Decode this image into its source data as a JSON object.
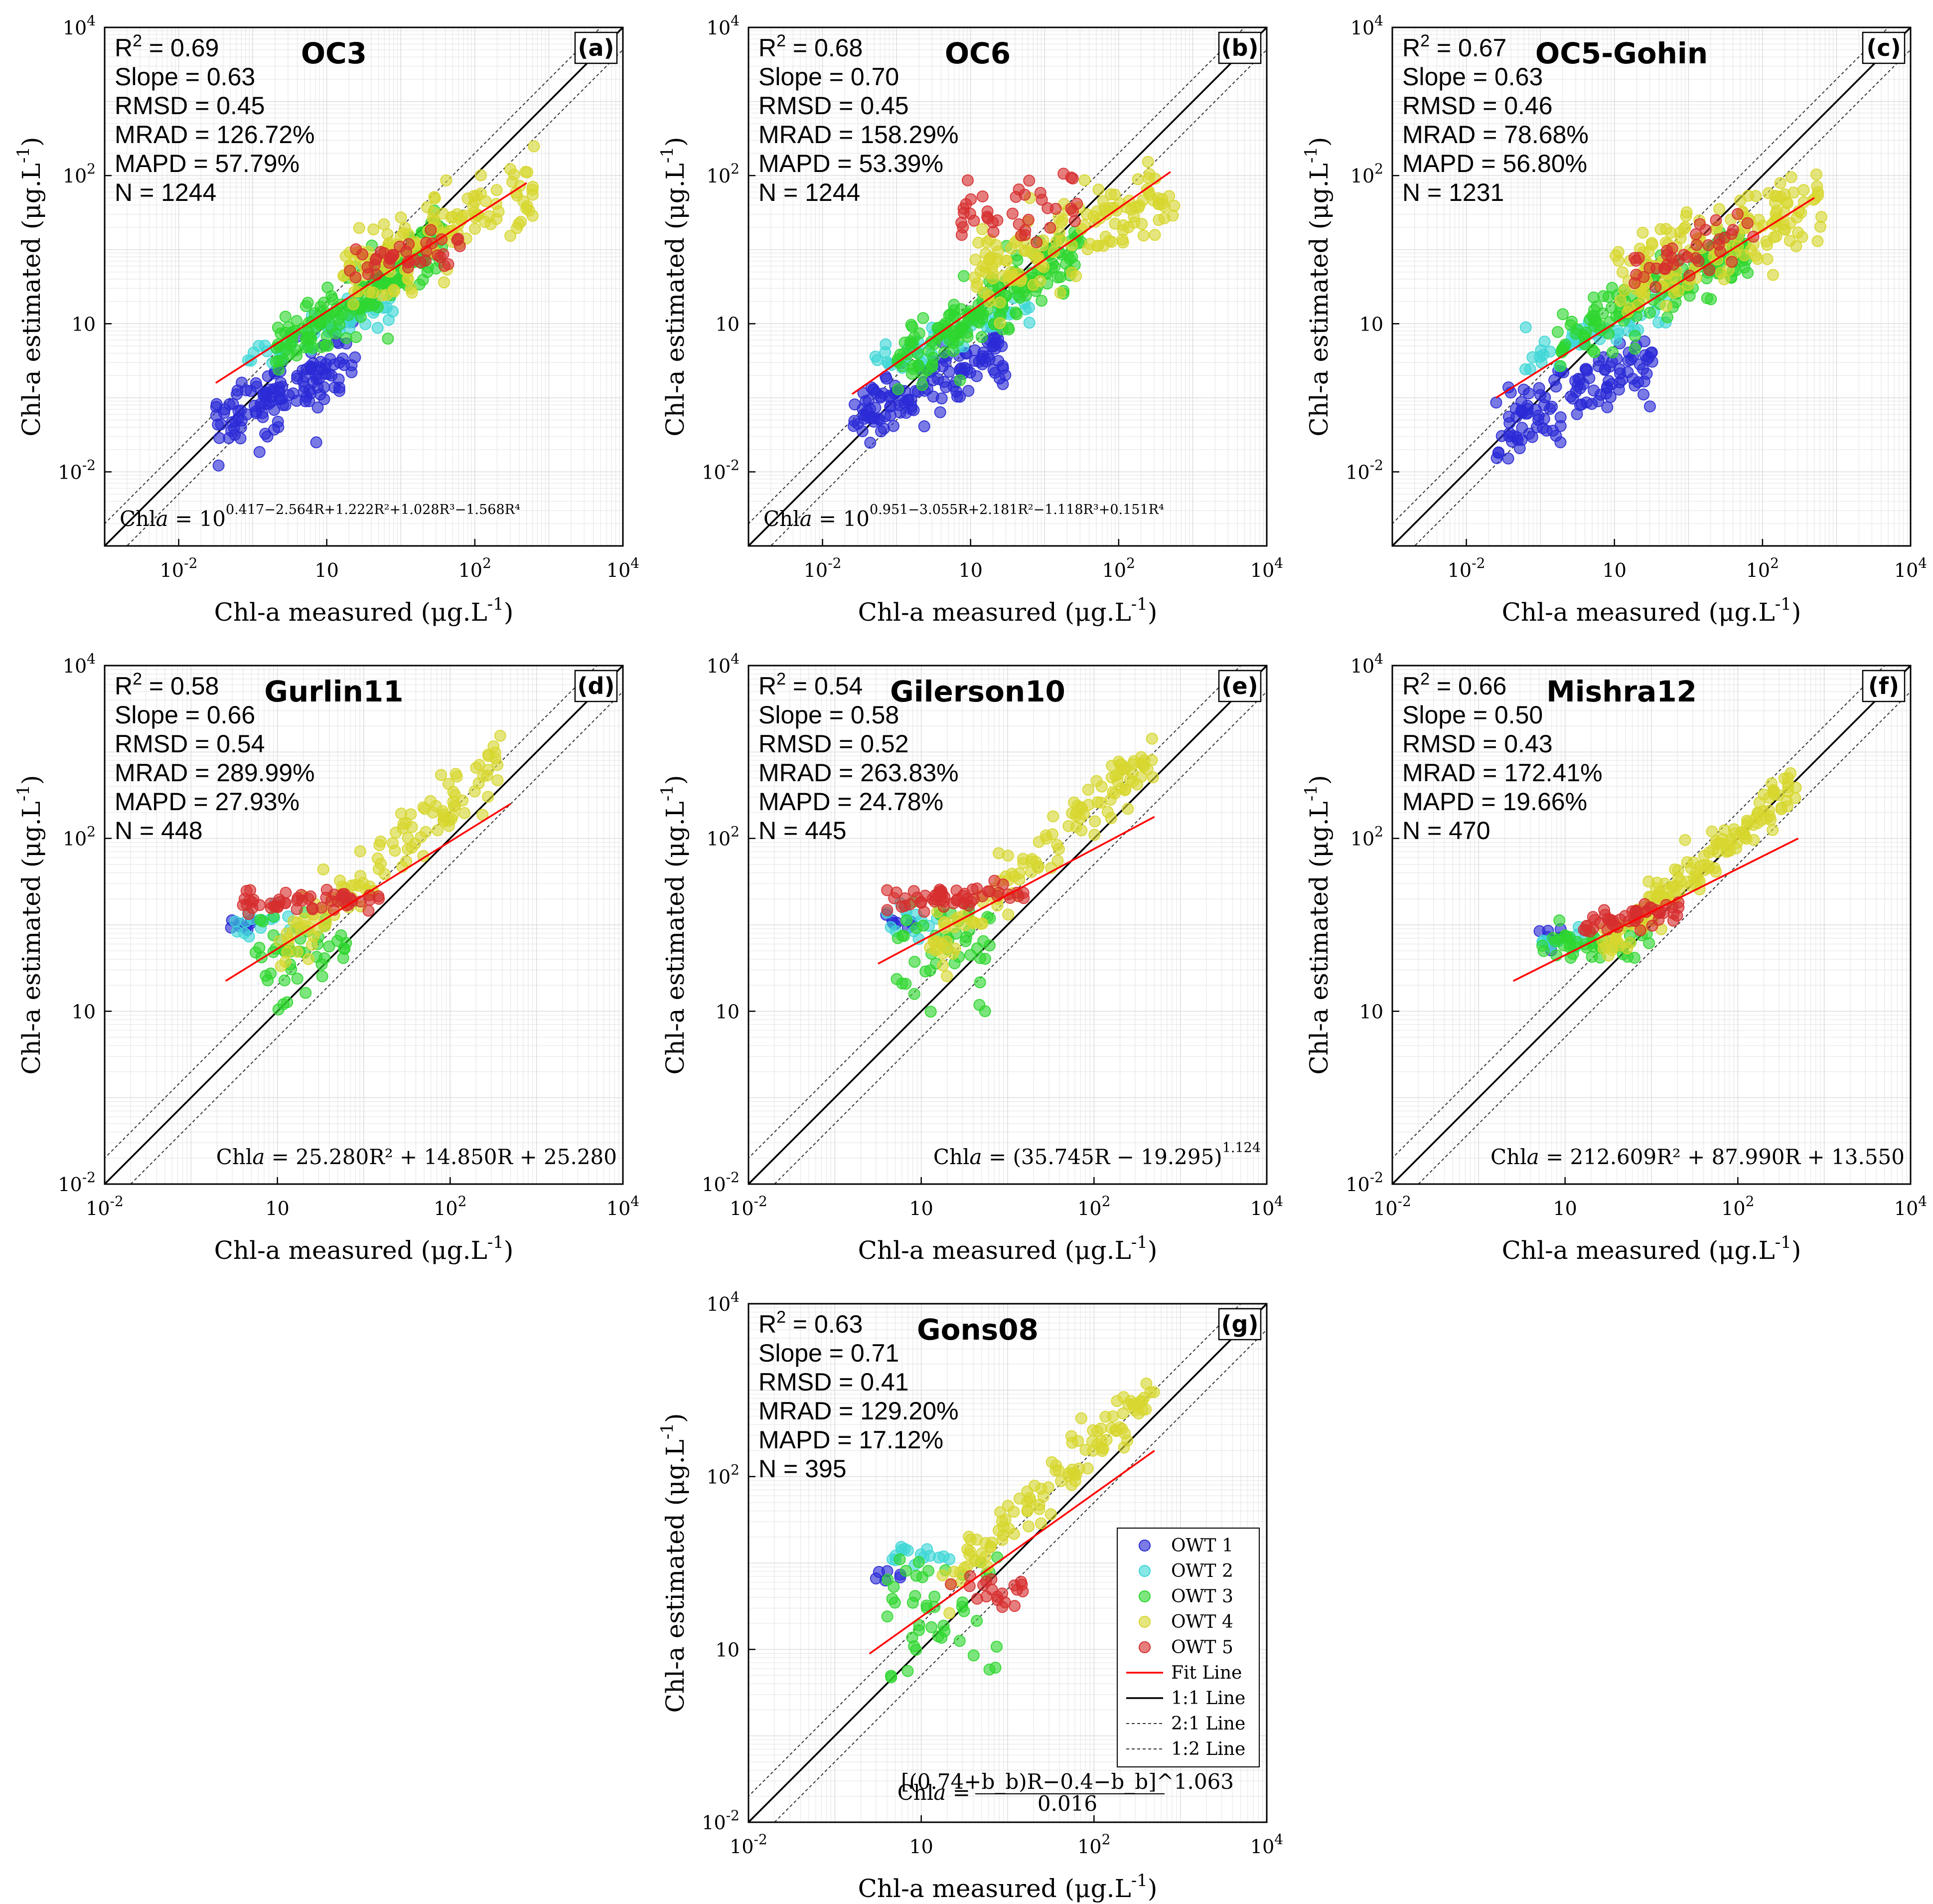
{
  "figure": {
    "axis_x_label": "Chl-a measured (μg.L",
    "axis_y_label": "Chl-a estimated (μg.L",
    "unit_sup": "-1",
    "unit_close": ")"
  },
  "colors": {
    "OWT 1": "#2a2ad6",
    "OWT 2": "#3ed6d6",
    "OWT 3": "#2ed62e",
    "OWT 4": "#d6d62e",
    "OWT 5": "#d62e2e",
    "fit": "#ff0000"
  },
  "legend": {
    "entries": [
      "OWT 1",
      "OWT 2",
      "OWT 3",
      "OWT 4",
      "OWT 5",
      "Fit Line",
      "1:1 Line",
      "2:1 Line",
      "1:2 Line"
    ]
  },
  "chart_data": [
    {
      "type": "scatter",
      "letter": "(a)",
      "title": "OC3",
      "xlim_log10": [
        -3,
        4
      ],
      "ylim_log10": [
        -3,
        4
      ],
      "stats": {
        "r2_value": "0.69",
        "slope": "Slope = 0.63",
        "rmsd": "RMSD = 0.45",
        "mrad": "MRAD = 126.72%",
        "mapd": "MAPD = 57.79%",
        "n": "N = 1244"
      },
      "formula": {
        "prefix": "Chl",
        "italic": "a",
        "mid": " = 10",
        "sup": "0.417−2.564R+1.222R²+1.028R³−1.568R⁴"
      },
      "fit": {
        "x_log10": [
          -1.5,
          2.7
        ],
        "y_log10": [
          -0.8,
          1.9
        ]
      },
      "clusters": [
        {
          "owt": "OWT 1",
          "n": 130,
          "xr": [
            -1.5,
            0.4
          ],
          "ya": 0.45,
          "yb": -0.65,
          "sd": 0.22
        },
        {
          "owt": "OWT 2",
          "n": 50,
          "xr": [
            -1.1,
            0.9
          ],
          "ya": 0.4,
          "yb": -0.05,
          "sd": 0.12
        },
        {
          "owt": "OWT 3",
          "n": 170,
          "xr": [
            -0.7,
            1.6
          ],
          "ya": 0.65,
          "yb": 0.1,
          "sd": 0.2
        },
        {
          "owt": "OWT 4",
          "n": 140,
          "xr": [
            0.2,
            2.8
          ],
          "ya": 0.45,
          "yb": 0.55,
          "sd": 0.28
        },
        {
          "owt": "OWT 5",
          "n": 40,
          "xr": [
            0.3,
            1.8
          ],
          "ya": 0.15,
          "yb": 0.75,
          "sd": 0.12
        }
      ]
    },
    {
      "type": "scatter",
      "letter": "(b)",
      "title": "OC6",
      "xlim_log10": [
        -3,
        4
      ],
      "ylim_log10": [
        -3,
        4
      ],
      "stats": {
        "r2_value": "0.68",
        "slope": "Slope = 0.70",
        "rmsd": "RMSD = 0.45",
        "mrad": "MRAD = 158.29%",
        "mapd": "MAPD = 53.39%",
        "n": "N = 1244"
      },
      "formula": {
        "prefix": "Chl",
        "italic": "a",
        "mid": " = 10",
        "sup": "0.951−3.055R+2.181R²−1.118R³+0.151R⁴"
      },
      "fit": {
        "x_log10": [
          -1.6,
          2.7
        ],
        "y_log10": [
          -0.95,
          2.05
        ]
      },
      "clusters": [
        {
          "owt": "OWT 1",
          "n": 130,
          "xr": [
            -1.6,
            0.5
          ],
          "ya": 0.45,
          "yb": -0.55,
          "sd": 0.22
        },
        {
          "owt": "OWT 2",
          "n": 50,
          "xr": [
            -1.3,
            0.8
          ],
          "ya": 0.4,
          "yb": -0.05,
          "sd": 0.12
        },
        {
          "owt": "OWT 3",
          "n": 170,
          "xr": [
            -1.0,
            1.5
          ],
          "ya": 0.65,
          "yb": 0.1,
          "sd": 0.2
        },
        {
          "owt": "OWT 4",
          "n": 140,
          "xr": [
            0.0,
            2.8
          ],
          "ya": 0.4,
          "yb": 0.6,
          "sd": 0.25
        },
        {
          "owt": "OWT 5",
          "n": 40,
          "xr": [
            -0.2,
            1.5
          ],
          "ya": 0.1,
          "yb": 1.45,
          "sd": 0.2
        }
      ]
    },
    {
      "type": "scatter",
      "letter": "(c)",
      "title": "OC5-Gohin",
      "xlim_log10": [
        -3,
        4
      ],
      "ylim_log10": [
        -3,
        4
      ],
      "stats": {
        "r2_value": "0.67",
        "slope": "Slope = 0.63",
        "rmsd": "RMSD = 0.46",
        "mrad": "MRAD = 78.68%",
        "mapd": "MAPD = 56.80%",
        "n": "N = 1231"
      },
      "formula": null,
      "fit": {
        "x_log10": [
          -1.6,
          2.7
        ],
        "y_log10": [
          -1.0,
          1.7
        ]
      },
      "clusters": [
        {
          "owt": "OWT 1",
          "n": 120,
          "xr": [
            -1.6,
            0.6
          ],
          "ya": 0.5,
          "yb": -0.7,
          "sd": 0.25
        },
        {
          "owt": "OWT 2",
          "n": 50,
          "xr": [
            -1.3,
            0.8
          ],
          "ya": 0.4,
          "yb": -0.05,
          "sd": 0.14
        },
        {
          "owt": "OWT 3",
          "n": 150,
          "xr": [
            -0.8,
            1.8
          ],
          "ya": 0.5,
          "yb": 0.15,
          "sd": 0.2
        },
        {
          "owt": "OWT 4",
          "n": 160,
          "xr": [
            0.0,
            2.8
          ],
          "ya": 0.4,
          "yb": 0.55,
          "sd": 0.28
        },
        {
          "owt": "OWT 5",
          "n": 40,
          "xr": [
            0.2,
            1.9
          ],
          "ya": 0.35,
          "yb": 0.6,
          "sd": 0.15
        }
      ]
    },
    {
      "type": "scatter",
      "letter": "(d)",
      "title": "Gurlin11",
      "xlim_log10": [
        -2,
        4
      ],
      "ylim_log10": [
        -2,
        4
      ],
      "stats": {
        "r2_value": "0.58",
        "slope": "Slope = 0.66",
        "rmsd": "RMSD = 0.54",
        "mrad": "MRAD = 289.99%",
        "mapd": "MAPD = 27.93%",
        "n": "N = 448"
      },
      "formula": {
        "prefix": "Chl",
        "italic": "a",
        "mid": " = 25.280R² + 14.850R + 25.280",
        "sup": ""
      },
      "fit": {
        "x_log10": [
          -0.6,
          2.7
        ],
        "y_log10": [
          0.35,
          2.4
        ]
      },
      "clusters": [
        {
          "owt": "OWT 1",
          "n": 8,
          "xr": [
            -0.6,
            -0.2
          ],
          "ya": 0.0,
          "yb": 1.0,
          "sd": 0.05
        },
        {
          "owt": "OWT 2",
          "n": 15,
          "xr": [
            -0.5,
            0.3
          ],
          "ya": 0.0,
          "yb": 1.05,
          "sd": 0.08
        },
        {
          "owt": "OWT 3",
          "n": 45,
          "xr": [
            -0.3,
            0.8
          ],
          "ya": 0.0,
          "yb": 0.7,
          "sd": 0.3
        },
        {
          "owt": "OWT 4",
          "n": 120,
          "xr": [
            0.0,
            2.7
          ],
          "ya": 0.9,
          "yb": 0.65,
          "sd": 0.16
        },
        {
          "owt": "OWT 5",
          "n": 55,
          "xr": [
            -0.4,
            1.2
          ],
          "ya": 0.05,
          "yb": 1.25,
          "sd": 0.07
        }
      ]
    },
    {
      "type": "scatter",
      "letter": "(e)",
      "title": "Gilerson10",
      "xlim_log10": [
        -2,
        4
      ],
      "ylim_log10": [
        -2,
        4
      ],
      "stats": {
        "r2_value": "0.54",
        "slope": "Slope = 0.58",
        "rmsd": "RMSD = 0.52",
        "mrad": "MRAD = 263.83%",
        "mapd": "MAPD = 24.78%",
        "n": "N = 445"
      },
      "formula": {
        "prefix": "Chl",
        "italic": "a",
        "mid": " = (35.745R − 19.295)",
        "sup": "1.124"
      },
      "fit": {
        "x_log10": [
          -0.5,
          2.7
        ],
        "y_log10": [
          0.55,
          2.25
        ]
      },
      "clusters": [
        {
          "owt": "OWT 1",
          "n": 8,
          "xr": [
            -0.5,
            -0.1
          ],
          "ya": 0.0,
          "yb": 1.0,
          "sd": 0.05
        },
        {
          "owt": "OWT 2",
          "n": 15,
          "xr": [
            -0.4,
            0.3
          ],
          "ya": 0.0,
          "yb": 1.05,
          "sd": 0.08
        },
        {
          "owt": "OWT 3",
          "n": 45,
          "xr": [
            -0.3,
            0.8
          ],
          "ya": 0.0,
          "yb": 0.7,
          "sd": 0.3
        },
        {
          "owt": "OWT 4",
          "n": 120,
          "xr": [
            0.1,
            2.7
          ],
          "ya": 0.9,
          "yb": 0.6,
          "sd": 0.16
        },
        {
          "owt": "OWT 5",
          "n": 55,
          "xr": [
            -0.4,
            1.2
          ],
          "ya": 0.05,
          "yb": 1.3,
          "sd": 0.07
        }
      ]
    },
    {
      "type": "scatter",
      "letter": "(f)",
      "title": "Mishra12",
      "xlim_log10": [
        -2,
        4
      ],
      "ylim_log10": [
        -2,
        4
      ],
      "stats": {
        "r2_value": "0.66",
        "slope": "Slope = 0.50",
        "rmsd": "RMSD = 0.43",
        "mrad": "MRAD = 172.41%",
        "mapd": "MAPD = 19.66%",
        "n": "N = 470"
      },
      "formula": {
        "prefix": "Chl",
        "italic": "a",
        "mid": " = 212.609R² + 87.990R + 13.550",
        "sup": ""
      },
      "fit": {
        "x_log10": [
          -0.6,
          2.7
        ],
        "y_log10": [
          0.35,
          2.0
        ]
      },
      "clusters": [
        {
          "owt": "OWT 1",
          "n": 8,
          "xr": [
            -0.4,
            0.0
          ],
          "ya": 0.0,
          "yb": 0.85,
          "sd": 0.08
        },
        {
          "owt": "OWT 2",
          "n": 12,
          "xr": [
            -0.3,
            0.4
          ],
          "ya": 0.0,
          "yb": 0.85,
          "sd": 0.08
        },
        {
          "owt": "OWT 3",
          "n": 40,
          "xr": [
            -0.3,
            1.0
          ],
          "ya": 0.0,
          "yb": 0.8,
          "sd": 0.12
        },
        {
          "owt": "OWT 4",
          "n": 150,
          "xr": [
            0.4,
            2.7
          ],
          "ya": 0.85,
          "yb": 0.35,
          "sd": 0.12
        },
        {
          "owt": "OWT 5",
          "n": 50,
          "xr": [
            0.2,
            1.4
          ],
          "ya": 0.15,
          "yb": 0.95,
          "sd": 0.08
        }
      ]
    },
    {
      "type": "scatter",
      "letter": "(g)",
      "title": "Gons08",
      "xlim_log10": [
        -2,
        4
      ],
      "ylim_log10": [
        -2,
        4
      ],
      "stats": {
        "r2_value": "0.63",
        "slope": "Slope = 0.71",
        "rmsd": "RMSD = 0.41",
        "mrad": "MRAD = 129.20%",
        "mapd": "MAPD = 17.12%",
        "n": "N = 395"
      },
      "formula": {
        "prefix": "Chl",
        "italic": "a",
        "mid": " = ",
        "frac_num": "[(0.74+b_b)R−0.4−b_b]^1.063",
        "frac_den": "0.016"
      },
      "fit": {
        "x_log10": [
          -0.6,
          2.7
        ],
        "y_log10": [
          -0.05,
          2.3
        ]
      },
      "clusters": [
        {
          "owt": "OWT 1",
          "n": 6,
          "xr": [
            -0.6,
            -0.2
          ],
          "ya": 0.0,
          "yb": 0.85,
          "sd": 0.07
        },
        {
          "owt": "OWT 2",
          "n": 15,
          "xr": [
            -0.4,
            0.4
          ],
          "ya": 0.0,
          "yb": 1.1,
          "sd": 0.06
        },
        {
          "owt": "OWT 3",
          "n": 45,
          "xr": [
            -0.4,
            0.9
          ],
          "ya": 0.0,
          "yb": 0.4,
          "sd": 0.35
        },
        {
          "owt": "OWT 4",
          "n": 110,
          "xr": [
            0.2,
            2.7
          ],
          "ya": 0.9,
          "yb": 0.55,
          "sd": 0.16
        },
        {
          "owt": "OWT 5",
          "n": 20,
          "xr": [
            0.3,
            1.2
          ],
          "ya": 0.0,
          "yb": 0.7,
          "sd": 0.12
        }
      ]
    }
  ]
}
